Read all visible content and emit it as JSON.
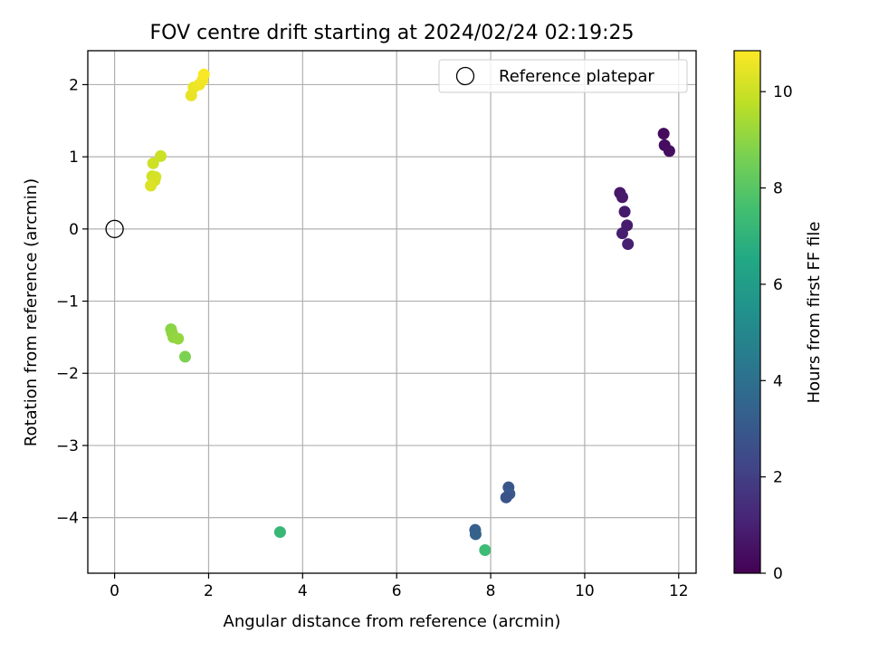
{
  "chart_data": {
    "type": "scatter",
    "title": "FOV centre drift starting at 2024/02/24 02:19:25",
    "xlabel": "Angular distance from reference (arcmin)",
    "ylabel": "Rotation from reference (arcmin)",
    "xlim": [
      -0.57,
      12.37
    ],
    "ylim": [
      -4.77,
      2.47
    ],
    "xticks": [
      0,
      2,
      4,
      6,
      8,
      10,
      12
    ],
    "yticks": [
      -4,
      -3,
      -2,
      -1,
      0,
      1,
      2
    ],
    "xtick_labels": [
      "0",
      "2",
      "4",
      "6",
      "8",
      "10",
      "12"
    ],
    "ytick_labels": [
      "−4",
      "−3",
      "−2",
      "−1",
      "0",
      "1",
      "2"
    ],
    "grid": true,
    "legend": {
      "position": "top-right",
      "entries": [
        {
          "label": "Reference platepar",
          "marker": "open-circle"
        }
      ]
    },
    "reference_point": {
      "x": 0,
      "y": 0
    },
    "colorbar": {
      "label": "Hours from first FF file",
      "colormap": "viridis",
      "range": [
        0,
        10.85
      ],
      "ticks": [
        0,
        2,
        4,
        6,
        8,
        10
      ],
      "tick_labels": [
        "0",
        "2",
        "4",
        "6",
        "8",
        "10"
      ]
    },
    "points": [
      {
        "x": 11.68,
        "y": 1.32,
        "c": 0.3
      },
      {
        "x": 11.7,
        "y": 1.16,
        "c": 0.35
      },
      {
        "x": 11.8,
        "y": 1.08,
        "c": 0.4
      },
      {
        "x": 10.75,
        "y": 0.5,
        "c": 0.7
      },
      {
        "x": 10.8,
        "y": 0.44,
        "c": 0.75
      },
      {
        "x": 10.85,
        "y": 0.24,
        "c": 0.8
      },
      {
        "x": 10.9,
        "y": 0.05,
        "c": 0.85
      },
      {
        "x": 10.8,
        "y": -0.06,
        "c": 0.9
      },
      {
        "x": 10.92,
        "y": -0.21,
        "c": 0.95
      },
      {
        "x": 8.38,
        "y": -3.58,
        "c": 2.9
      },
      {
        "x": 8.4,
        "y": -3.67,
        "c": 3.0
      },
      {
        "x": 8.33,
        "y": -3.72,
        "c": 2.8
      },
      {
        "x": 7.67,
        "y": -4.17,
        "c": 3.3
      },
      {
        "x": 7.68,
        "y": -4.23,
        "c": 3.4
      },
      {
        "x": 3.52,
        "y": -4.2,
        "c": 7.2
      },
      {
        "x": 7.88,
        "y": -4.45,
        "c": 7.4
      },
      {
        "x": 1.2,
        "y": -1.39,
        "c": 8.9
      },
      {
        "x": 1.22,
        "y": -1.44,
        "c": 9.0
      },
      {
        "x": 1.25,
        "y": -1.5,
        "c": 9.05
      },
      {
        "x": 1.35,
        "y": -1.52,
        "c": 9.1
      },
      {
        "x": 1.5,
        "y": -1.77,
        "c": 8.7
      },
      {
        "x": 0.98,
        "y": 1.01,
        "c": 10.0
      },
      {
        "x": 0.82,
        "y": 0.91,
        "c": 10.05
      },
      {
        "x": 0.8,
        "y": 0.73,
        "c": 10.1
      },
      {
        "x": 0.87,
        "y": 0.72,
        "c": 10.15
      },
      {
        "x": 0.85,
        "y": 0.67,
        "c": 10.2
      },
      {
        "x": 0.77,
        "y": 0.6,
        "c": 10.25
      },
      {
        "x": 1.63,
        "y": 1.85,
        "c": 10.5
      },
      {
        "x": 1.68,
        "y": 1.96,
        "c": 10.55
      },
      {
        "x": 1.8,
        "y": 2.0,
        "c": 10.6
      },
      {
        "x": 1.87,
        "y": 2.06,
        "c": 10.65
      },
      {
        "x": 1.9,
        "y": 2.14,
        "c": 10.8
      }
    ]
  }
}
